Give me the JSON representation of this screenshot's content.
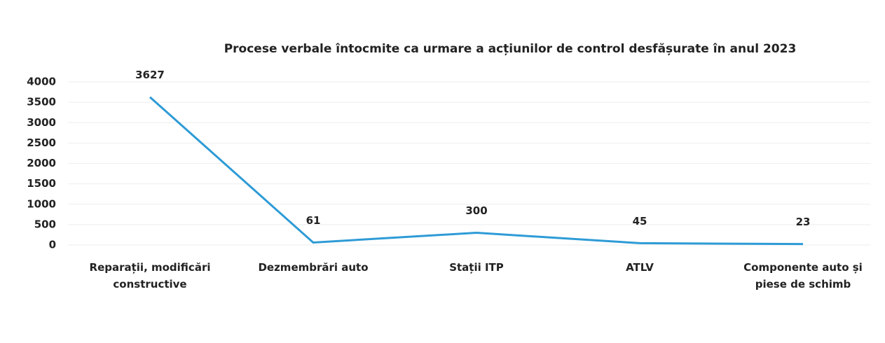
{
  "chart_data": {
    "type": "line",
    "title": "Procese verbale întocmite ca urmare a acțiunilor de control desfășurate în anul 2023",
    "categories": [
      "Reparații, modificări constructive",
      "Dezmembrări auto",
      "Stații ITP",
      "ATLV",
      "Componente auto și piese de schimb"
    ],
    "values": [
      3627,
      61,
      300,
      45,
      23
    ],
    "color": "#2e9bd6",
    "ylim": [
      0,
      4000
    ],
    "yticks": [
      0,
      500,
      1000,
      1500,
      2000,
      2500,
      3000,
      3500,
      4000
    ],
    "grid": true
  }
}
